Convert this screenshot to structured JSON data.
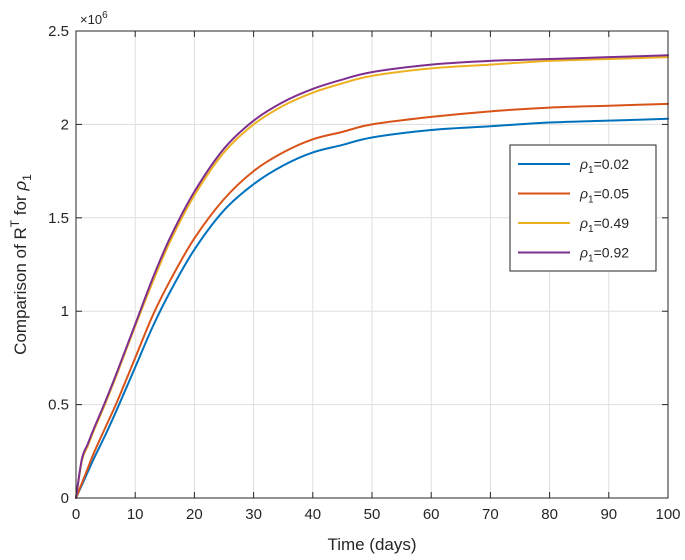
{
  "chart_data": {
    "type": "line",
    "xlabel": "Time (days)",
    "ylabel": {
      "base": "Comparison of R",
      "sup": "T",
      "mid": " for ",
      "sym": "ρ",
      "sub": "1"
    },
    "y_exponent": {
      "base": "×10",
      "power": "6"
    },
    "xlim": [
      0,
      100
    ],
    "ylim": [
      0,
      2.5
    ],
    "x_ticks": [
      0,
      10,
      20,
      30,
      40,
      50,
      60,
      70,
      80,
      90,
      100
    ],
    "x_tick_labels": [
      "0",
      "10",
      "20",
      "30",
      "40",
      "50",
      "60",
      "70",
      "80",
      "90",
      "100"
    ],
    "y_ticks": [
      0,
      0.5,
      1,
      1.5,
      2,
      2.5
    ],
    "y_tick_labels": [
      "0",
      "0.5",
      "1",
      "1.5",
      "2",
      "2.5"
    ],
    "grid": true,
    "legend_position": "right",
    "x": [
      0,
      1,
      2,
      3,
      5,
      7,
      10,
      13,
      16,
      20,
      25,
      30,
      35,
      40,
      45,
      50,
      60,
      70,
      80,
      90,
      100
    ],
    "series": [
      {
        "sym": "ρ",
        "sub": "1",
        "value_text": "=0.02",
        "color": "#0072BD",
        "values": [
          0.0,
          0.07,
          0.14,
          0.21,
          0.34,
          0.48,
          0.7,
          0.92,
          1.11,
          1.33,
          1.54,
          1.68,
          1.78,
          1.85,
          1.89,
          1.93,
          1.97,
          1.99,
          2.01,
          2.02,
          2.03
        ]
      },
      {
        "sym": "ρ",
        "sub": "1",
        "value_text": "=0.05",
        "color": "#D95319",
        "values": [
          0.0,
          0.08,
          0.16,
          0.24,
          0.38,
          0.52,
          0.75,
          0.98,
          1.17,
          1.39,
          1.6,
          1.75,
          1.85,
          1.92,
          1.96,
          2.0,
          2.04,
          2.07,
          2.09,
          2.1,
          2.11
        ]
      },
      {
        "sym": "ρ",
        "sub": "1",
        "value_text": "=0.49",
        "color": "#EDB120",
        "values": [
          0.0,
          0.2,
          0.28,
          0.36,
          0.51,
          0.67,
          0.92,
          1.16,
          1.38,
          1.62,
          1.85,
          2.0,
          2.1,
          2.17,
          2.22,
          2.26,
          2.3,
          2.32,
          2.34,
          2.35,
          2.36
        ]
      },
      {
        "sym": "ρ",
        "sub": "1",
        "value_text": "=0.92",
        "color": "#7E2F8E",
        "values": [
          0.0,
          0.21,
          0.29,
          0.37,
          0.52,
          0.68,
          0.93,
          1.18,
          1.4,
          1.64,
          1.87,
          2.02,
          2.12,
          2.19,
          2.24,
          2.28,
          2.32,
          2.34,
          2.35,
          2.36,
          2.37
        ]
      }
    ]
  }
}
